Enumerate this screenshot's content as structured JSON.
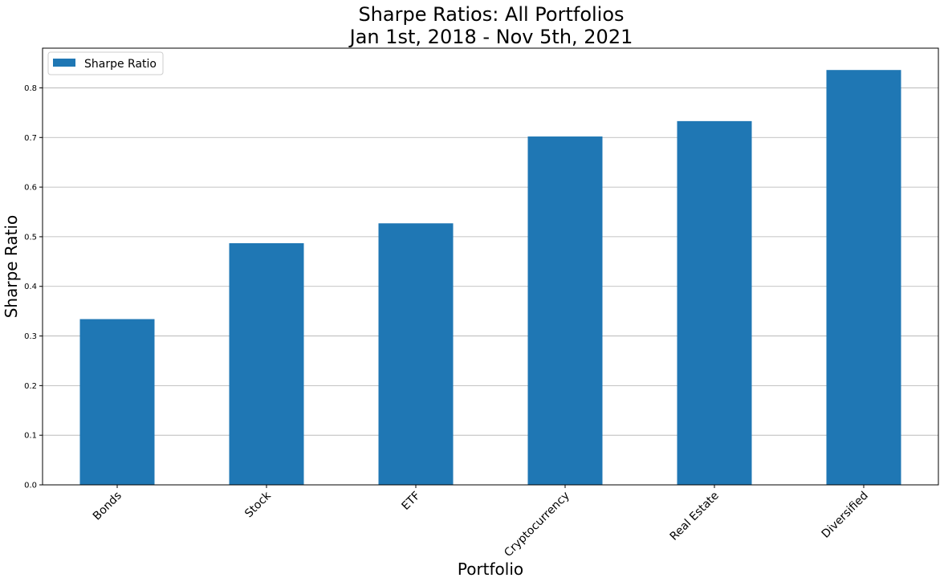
{
  "chart_data": {
    "type": "bar",
    "title": "Sharpe Ratios: All Portfolios",
    "subtitle": "Jan 1st, 2018 - Nov 5th, 2021",
    "xlabel": "Portfolio",
    "ylabel": "Sharpe Ratio",
    "categories": [
      "Bonds",
      "Stock",
      "ETF",
      "Cryptocurrency",
      "Real Estate",
      "Diversified"
    ],
    "series": [
      {
        "name": "Sharpe Ratio",
        "color": "#1f77b4",
        "values": [
          0.334,
          0.487,
          0.527,
          0.702,
          0.733,
          0.836
        ]
      }
    ],
    "ylim": [
      0,
      0.88
    ],
    "yticks": [
      0.0,
      0.1,
      0.2,
      0.3,
      0.4,
      0.5,
      0.6,
      0.7,
      0.8
    ],
    "ytick_labels": [
      "0.0",
      "0.1",
      "0.2",
      "0.3",
      "0.4",
      "0.5",
      "0.6",
      "0.7",
      "0.8"
    ],
    "grid": "horizontal",
    "legend_position": "top-left",
    "xtick_rotation": "45 degrees"
  }
}
